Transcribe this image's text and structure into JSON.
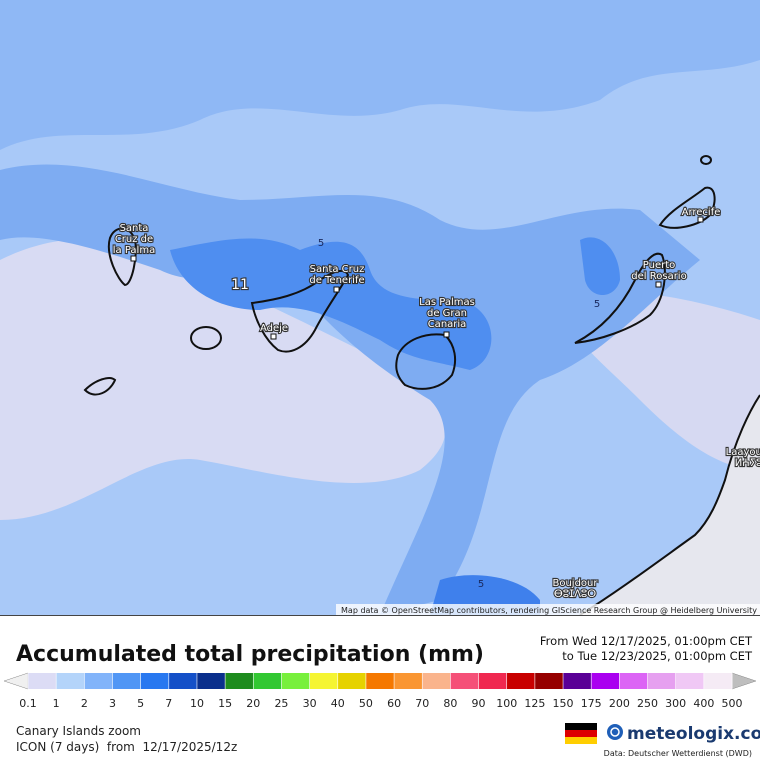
{
  "map": {
    "labels": [
      {
        "lines": [
          "Santa",
          "Cruz de",
          "la Palma"
        ]
      },
      {
        "lines": [
          "Santa Cruz",
          "de Tenerife"
        ]
      },
      {
        "lines": [
          "Adeje"
        ]
      },
      {
        "lines": [
          "Las Palmas",
          "de Gran",
          "Canaria"
        ]
      },
      {
        "lines": [
          "Puerto",
          "del Rosario"
        ]
      },
      {
        "lines": [
          "Arrecife"
        ]
      },
      {
        "lines": [
          "Laayoune",
          "ⵍⵄⵢⵓⵏ"
        ]
      },
      {
        "lines": [
          "Boujdour",
          "ⴱⵓⵊⴷⵓⵔ"
        ]
      }
    ],
    "contour_labels": [
      "11",
      "5",
      "5",
      "5"
    ],
    "attribution": "Map data © OpenStreetMap contributors, rendering GIScience Research Group @ Heidelberg University"
  },
  "legend": {
    "title": "Accumulated total precipitation (mm)",
    "from": "From Wed 12/17/2025, 01:00pm CET",
    "to": "to Tue 12/23/2025, 01:00pm CET",
    "ticks": [
      0.1,
      1,
      2,
      3,
      5,
      7,
      10,
      15,
      20,
      25,
      30,
      40,
      50,
      60,
      70,
      80,
      90,
      100,
      125,
      150,
      175,
      200,
      250,
      300,
      400,
      500
    ],
    "colors": [
      "#dcdcf5",
      "#b4d4fa",
      "#82b4fa",
      "#5096f5",
      "#2878f0",
      "#1450c8",
      "#0a2f8c",
      "#1e8c1e",
      "#32c832",
      "#78f03c",
      "#f5f532",
      "#e6d200",
      "#f57800",
      "#fa9632",
      "#fab48c",
      "#f55078",
      "#f02850",
      "#c80000",
      "#960000",
      "#5a0096",
      "#aa00f0",
      "#dc64f5",
      "#e6a0f0",
      "#f0c8f5",
      "#f5ebf5"
    ],
    "under_color": "#f0f0f0",
    "over_color": "#bebebe"
  },
  "footer": {
    "region": "Canary Islands zoom",
    "model": "ICON (7 days)  from  12/17/2025/12z",
    "brand": "meteologix.com",
    "source": "Data: Deutscher Wetterdienst (DWD)"
  }
}
